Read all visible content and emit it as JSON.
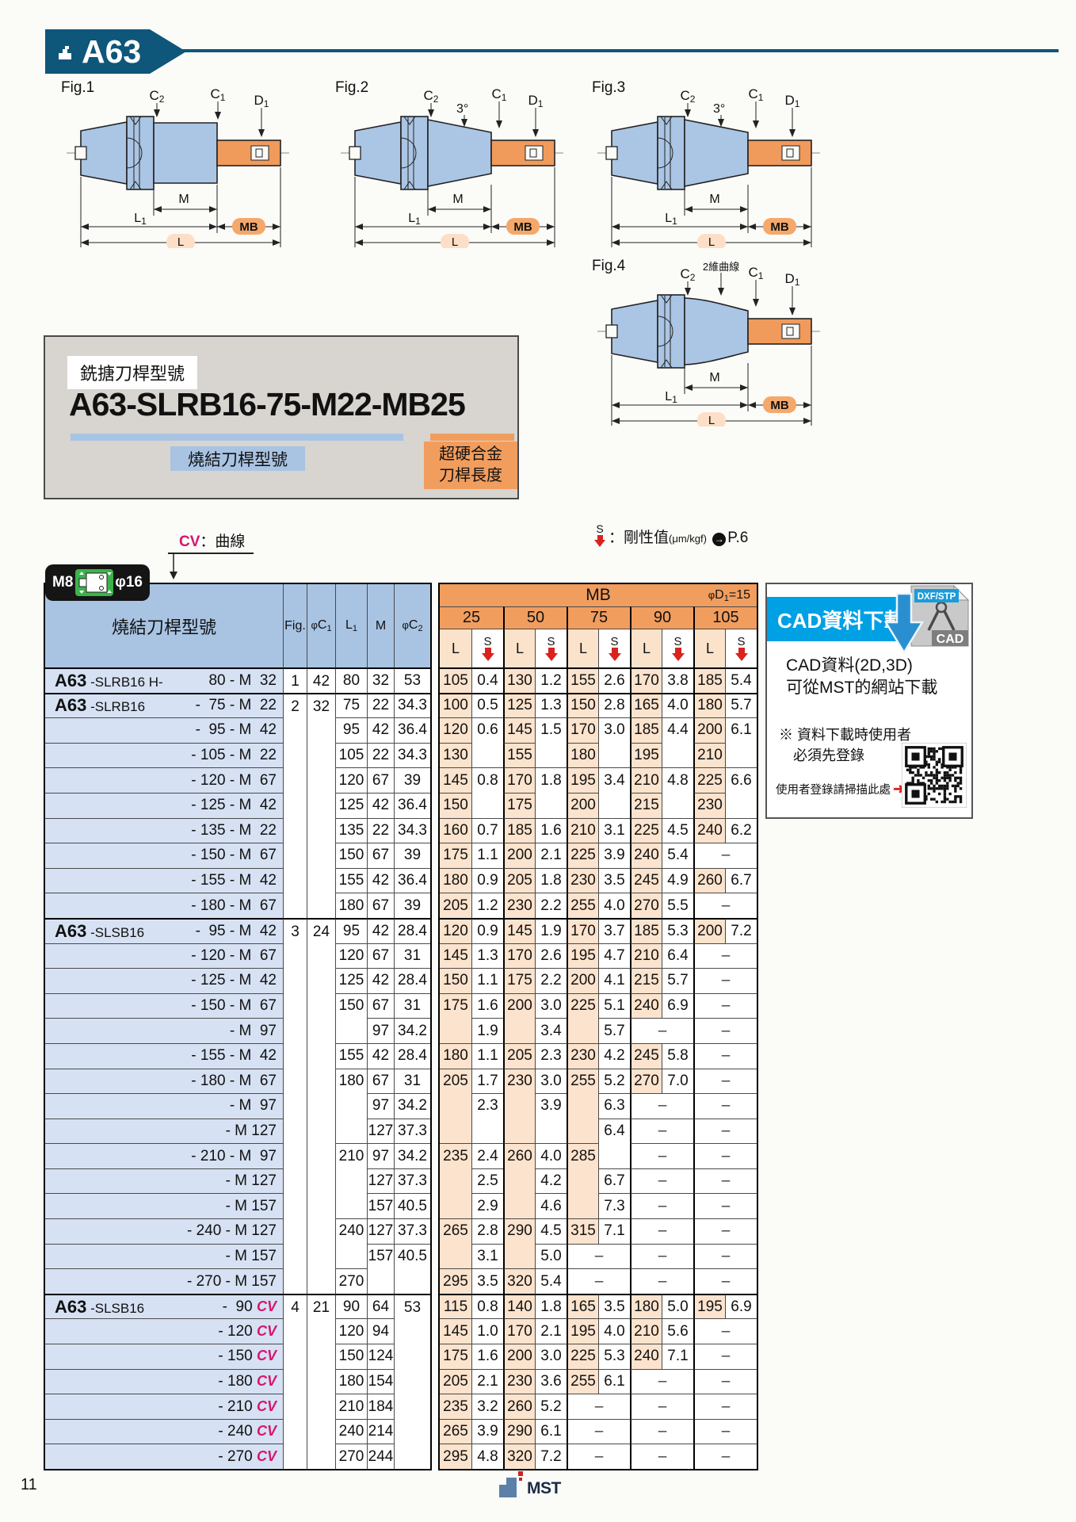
{
  "page": {
    "code": "A63",
    "number": "11",
    "footer_brand": "MST"
  },
  "figures": [
    {
      "label": "Fig.1",
      "shape": "straight",
      "c2": [
        "C",
        "2"
      ],
      "c1": [
        "C",
        "1"
      ],
      "d1": [
        "D",
        "1"
      ],
      "angle": "",
      "curve": "",
      "m": "M",
      "l1": [
        "L",
        "1"
      ],
      "mb": "MB",
      "l": "L"
    },
    {
      "label": "Fig.2",
      "shape": "taper",
      "c2": [
        "C",
        "2"
      ],
      "c1": [
        "C",
        "1"
      ],
      "d1": [
        "D",
        "1"
      ],
      "angle": "3°",
      "curve": "",
      "m": "M",
      "l1": [
        "L",
        "1"
      ],
      "mb": "MB",
      "l": "L"
    },
    {
      "label": "Fig.3",
      "shape": "taper",
      "c2": [
        "C",
        "2"
      ],
      "c1": [
        "C",
        "1"
      ],
      "d1": [
        "D",
        "1"
      ],
      "angle": "3°",
      "curve": "",
      "m": "M",
      "l1": [
        "L",
        "1"
      ],
      "mb": "MB",
      "l": "L"
    },
    {
      "label": "Fig.4",
      "shape": "curve",
      "c2": [
        "C",
        "2"
      ],
      "c1": [
        "C",
        "1"
      ],
      "d1": [
        "D",
        "1"
      ],
      "angle": "",
      "curve": "2維曲線",
      "m": "M",
      "l1": [
        "L",
        "1"
      ],
      "mb": "MB",
      "l": "L"
    }
  ],
  "model_box": {
    "tag": "銑搪刀桿型號",
    "model": "A63-SLRB16-75-M22-MB25",
    "blue_label": "燒結刀桿型號",
    "orange_label": [
      "超硬合金",
      "刀桿長度"
    ]
  },
  "legend": {
    "cv": "CV",
    "cv_text": "：曲線",
    "s": "S",
    "s_text": "：剛性值",
    "s_unit": "(μm/kgf)",
    "s_arrow": "→",
    "s_ref": "P.6"
  },
  "badge": {
    "left": "M8",
    "right": "φ16"
  },
  "table": {
    "name_header": "燒結刀桿型號",
    "columns": [
      {
        "t": "Fig.",
        "s": ""
      },
      {
        "t": "φC",
        "s": "1"
      },
      {
        "t": "L",
        "s": "1"
      },
      {
        "t": "M",
        "s": ""
      },
      {
        "t": "φC",
        "s": "2"
      }
    ],
    "mb": "MB",
    "d1a": "φD",
    "d1sub": "1",
    "d1b": "=15",
    "sizes": [
      "25",
      "50",
      "75",
      "90",
      "105"
    ],
    "L": "L",
    "S": "S",
    "groups": [
      {
        "rows": 1,
        "fig": "1",
        "c1": "42"
      },
      {
        "rows": 9,
        "fig": "2",
        "c1": "32"
      },
      {
        "rows": 15,
        "fig": "3",
        "c1": "24"
      },
      {
        "rows": 7,
        "fig": "4",
        "c1": "21"
      }
    ],
    "rows": [
      {
        "l": "A63 -SLRB16 H-",
        "r": "80 - M  32",
        "l1": "80",
        "m": "32",
        "c2": "53",
        "mb": [
          [
            "105",
            "0.4"
          ],
          [
            "130",
            "1.2"
          ],
          [
            "155",
            "2.6"
          ],
          [
            "170",
            "3.8"
          ],
          [
            "185",
            "5.4"
          ]
        ]
      },
      {
        "l": "A63 -SLRB16",
        "r": "-  75 - M  22",
        "l1": "75",
        "m": "22",
        "c2": "34.3",
        "mb": [
          [
            "100",
            "0.5"
          ],
          [
            "125",
            "1.3"
          ],
          [
            "150",
            "2.8"
          ],
          [
            "165",
            "4.0"
          ],
          [
            "180",
            "5.7"
          ]
        ]
      },
      {
        "l": "",
        "r": "-  95 - M  42",
        "l1": "95",
        "m": "42",
        "c2": "36.4",
        "mb": [
          [
            "120",
            "0.6"
          ],
          [
            "145",
            "1.5"
          ],
          [
            "170",
            "3.0"
          ],
          [
            "185",
            "4.4"
          ],
          [
            "200",
            "6.1"
          ]
        ]
      },
      {
        "l": "",
        "r": "- 105 - M  22",
        "l1": "105",
        "m": "22",
        "c2": "34.3",
        "mb": [
          [
            "130",
            ""
          ],
          [
            "155",
            ""
          ],
          [
            "180",
            ""
          ],
          [
            "195",
            ""
          ],
          [
            "210",
            ""
          ]
        ]
      },
      {
        "l": "",
        "r": "- 120 - M  67",
        "l1": "120",
        "m": "67",
        "c2": "39",
        "mb": [
          [
            "145",
            "0.8"
          ],
          [
            "170",
            "1.8"
          ],
          [
            "195",
            "3.4"
          ],
          [
            "210",
            "4.8"
          ],
          [
            "225",
            "6.6"
          ]
        ]
      },
      {
        "l": "",
        "r": "- 125 - M  42",
        "l1": "125",
        "m": "42",
        "c2": "36.4",
        "mb": [
          [
            "150",
            ""
          ],
          [
            "175",
            ""
          ],
          [
            "200",
            ""
          ],
          [
            "215",
            ""
          ],
          [
            "230",
            ""
          ]
        ]
      },
      {
        "l": "",
        "r": "- 135 - M  22",
        "l1": "135",
        "m": "22",
        "c2": "34.3",
        "mb": [
          [
            "160",
            "0.7"
          ],
          [
            "185",
            "1.6"
          ],
          [
            "210",
            "3.1"
          ],
          [
            "225",
            "4.5"
          ],
          [
            "240",
            "6.2"
          ]
        ]
      },
      {
        "l": "",
        "r": "- 150 - M  67",
        "l1": "150",
        "m": "67",
        "c2": "39",
        "mb": [
          [
            "175",
            "1.1"
          ],
          [
            "200",
            "2.1"
          ],
          [
            "225",
            "3.9"
          ],
          [
            "240",
            "5.4"
          ],
          [
            "–"
          ]
        ]
      },
      {
        "l": "",
        "r": "- 155 - M  42",
        "l1": "155",
        "m": "42",
        "c2": "36.4",
        "mb": [
          [
            "180",
            "0.9"
          ],
          [
            "205",
            "1.8"
          ],
          [
            "230",
            "3.5"
          ],
          [
            "245",
            "4.9"
          ],
          [
            "260",
            "6.7"
          ]
        ]
      },
      {
        "l": "",
        "r": "- 180 - M  67",
        "l1": "180",
        "m": "67",
        "c2": "39",
        "mb": [
          [
            "205",
            "1.2"
          ],
          [
            "230",
            "2.2"
          ],
          [
            "255",
            "4.0"
          ],
          [
            "270",
            "5.5"
          ],
          [
            "–"
          ]
        ]
      },
      {
        "l": "A63 -SLSB16",
        "r": "-  95 - M  42",
        "l1": "95",
        "m": "42",
        "c2": "28.4",
        "mb": [
          [
            "120",
            "0.9"
          ],
          [
            "145",
            "1.9"
          ],
          [
            "170",
            "3.7"
          ],
          [
            "185",
            "5.3"
          ],
          [
            "200",
            "7.2"
          ]
        ]
      },
      {
        "l": "",
        "r": "- 120 - M  67",
        "l1": "120",
        "m": "67",
        "c2": "31",
        "mb": [
          [
            "145",
            "1.3"
          ],
          [
            "170",
            "2.6"
          ],
          [
            "195",
            "4.7"
          ],
          [
            "210",
            "6.4"
          ],
          [
            "–"
          ]
        ]
      },
      {
        "l": "",
        "r": "- 125 - M  42",
        "l1": "125",
        "m": "42",
        "c2": "28.4",
        "mb": [
          [
            "150",
            "1.1"
          ],
          [
            "175",
            "2.2"
          ],
          [
            "200",
            "4.1"
          ],
          [
            "215",
            "5.7"
          ],
          [
            "–"
          ]
        ]
      },
      {
        "l": "",
        "r": "- 150 - M  67",
        "l1": "150",
        "m": "67",
        "c2": "31",
        "mb": [
          [
            "175",
            "1.6"
          ],
          [
            "200",
            "3.0"
          ],
          [
            "225",
            "5.1"
          ],
          [
            "240",
            "6.9"
          ],
          [
            "–"
          ]
        ]
      },
      {
        "l": "",
        "r": "- M  97",
        "l1": "",
        "m": "97",
        "c2": "34.2",
        "mb": [
          [
            "",
            "1.9"
          ],
          [
            "",
            "3.4"
          ],
          [
            "",
            "5.7"
          ],
          [
            "–"
          ],
          [
            "–"
          ]
        ]
      },
      {
        "l": "",
        "r": "- 155 - M  42",
        "l1": "155",
        "m": "42",
        "c2": "28.4",
        "mb": [
          [
            "180",
            "1.1"
          ],
          [
            "205",
            "2.3"
          ],
          [
            "230",
            "4.2"
          ],
          [
            "245",
            "5.8"
          ],
          [
            "–"
          ]
        ]
      },
      {
        "l": "",
        "r": "- 180 - M  67",
        "l1": "180",
        "m": "67",
        "c2": "31",
        "mb": [
          [
            "205",
            "1.7"
          ],
          [
            "230",
            "3.0"
          ],
          [
            "255",
            "5.2"
          ],
          [
            "270",
            "7.0"
          ],
          [
            "–"
          ]
        ]
      },
      {
        "l": "",
        "r": "- M  97",
        "l1": "",
        "m": "97",
        "c2": "34.2",
        "mb": [
          [
            "",
            "2.3"
          ],
          [
            "",
            "3.9"
          ],
          [
            "",
            "6.3"
          ],
          [
            "–"
          ],
          [
            "–"
          ]
        ]
      },
      {
        "l": "",
        "r": "- M 127",
        "l1": "",
        "m": "127",
        "c2": "37.3",
        "mb": [
          [
            "",
            ""
          ],
          [
            "",
            ""
          ],
          [
            "",
            "6.4"
          ],
          [
            "–"
          ],
          [
            "–"
          ]
        ]
      },
      {
        "l": "",
        "r": "- 210 - M  97",
        "l1": "210",
        "m": "97",
        "c2": "34.2",
        "mb": [
          [
            "235",
            "2.4"
          ],
          [
            "260",
            "4.0"
          ],
          [
            "285",
            ""
          ],
          [
            "–"
          ],
          [
            "–"
          ]
        ]
      },
      {
        "l": "",
        "r": "- M 127",
        "l1": "",
        "m": "127",
        "c2": "37.3",
        "mb": [
          [
            "",
            "2.5"
          ],
          [
            "",
            "4.2"
          ],
          [
            "",
            "6.7"
          ],
          [
            "–"
          ],
          [
            "–"
          ]
        ]
      },
      {
        "l": "",
        "r": "- M 157",
        "l1": "",
        "m": "157",
        "c2": "40.5",
        "mb": [
          [
            "",
            "2.9"
          ],
          [
            "",
            "4.6"
          ],
          [
            "",
            "7.3"
          ],
          [
            "–"
          ],
          [
            "–"
          ]
        ]
      },
      {
        "l": "",
        "r": "- 240 - M 127",
        "l1": "240",
        "m": "127",
        "c2": "37.3",
        "mb": [
          [
            "265",
            "2.8"
          ],
          [
            "290",
            "4.5"
          ],
          [
            "315",
            "7.1"
          ],
          [
            "–"
          ],
          [
            "–"
          ]
        ]
      },
      {
        "l": "",
        "r": "- M 157",
        "l1": "",
        "m": "157",
        "c2": "40.5",
        "mb": [
          [
            "",
            "3.1"
          ],
          [
            "",
            "5.0"
          ],
          [
            "–"
          ],
          [
            "–"
          ],
          [
            "–"
          ]
        ]
      },
      {
        "l": "",
        "r": "- 270 - M 157",
        "l1": "270",
        "m": "",
        "c2": "",
        "mb": [
          [
            "295",
            "3.5"
          ],
          [
            "320",
            "5.4"
          ],
          [
            "–"
          ],
          [
            "–"
          ],
          [
            "–"
          ]
        ]
      },
      {
        "l": "A63 -SLSB16",
        "r": "-  90 ",
        "cv": true,
        "l1": "90",
        "m": "64",
        "c2": "53",
        "c2span": 7,
        "mb": [
          [
            "115",
            "0.8"
          ],
          [
            "140",
            "1.8"
          ],
          [
            "165",
            "3.5"
          ],
          [
            "180",
            "5.0"
          ],
          [
            "195",
            "6.9"
          ]
        ]
      },
      {
        "l": "",
        "r": "- 120 ",
        "cv": true,
        "l1": "120",
        "m": "94",
        "mb": [
          [
            "145",
            "1.0"
          ],
          [
            "170",
            "2.1"
          ],
          [
            "195",
            "4.0"
          ],
          [
            "210",
            "5.6"
          ],
          [
            "–"
          ]
        ]
      },
      {
        "l": "",
        "r": "- 150 ",
        "cv": true,
        "l1": "150",
        "m": "124",
        "mb": [
          [
            "175",
            "1.6"
          ],
          [
            "200",
            "3.0"
          ],
          [
            "225",
            "5.3"
          ],
          [
            "240",
            "7.1"
          ],
          [
            "–"
          ]
        ]
      },
      {
        "l": "",
        "r": "- 180 ",
        "cv": true,
        "l1": "180",
        "m": "154",
        "mb": [
          [
            "205",
            "2.1"
          ],
          [
            "230",
            "3.6"
          ],
          [
            "255",
            "6.1"
          ],
          [
            "–"
          ],
          [
            "–"
          ]
        ]
      },
      {
        "l": "",
        "r": "- 210 ",
        "cv": true,
        "l1": "210",
        "m": "184",
        "mb": [
          [
            "235",
            "3.2"
          ],
          [
            "260",
            "5.2"
          ],
          [
            "–"
          ],
          [
            "–"
          ],
          [
            "–"
          ]
        ]
      },
      {
        "l": "",
        "r": "- 240 ",
        "cv": true,
        "l1": "240",
        "m": "214",
        "mb": [
          [
            "265",
            "3.9"
          ],
          [
            "290",
            "6.1"
          ],
          [
            "–"
          ],
          [
            "–"
          ],
          [
            "–"
          ]
        ]
      },
      {
        "l": "",
        "r": "- 270 ",
        "cv": true,
        "l1": "270",
        "m": "244",
        "mb": [
          [
            "295",
            "4.8"
          ],
          [
            "320",
            "7.2"
          ],
          [
            "–"
          ],
          [
            "–"
          ],
          [
            "–"
          ]
        ]
      }
    ]
  },
  "cad": {
    "banner": "CAD資料下載",
    "tag": "DXF/STP",
    "file": "CAD",
    "line1": "CAD資料(2D,3D)",
    "line2": "可從MST的網站下載",
    "note1": "※ 資料下載時使用者",
    "note2": "必須先登錄",
    "scan": "使用者登錄請掃描此處"
  }
}
